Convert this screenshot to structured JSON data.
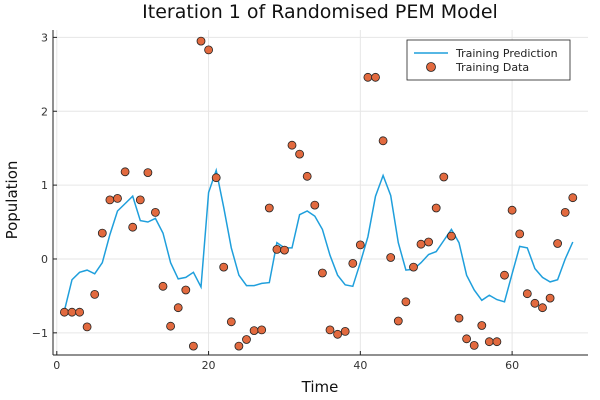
{
  "chart_data": {
    "type": "line",
    "title": "Iteration 1 of Randomised PEM Model",
    "xlabel": "Time",
    "ylabel": "Population",
    "xlim": [
      -0.5,
      70
    ],
    "ylim": [
      -1.3,
      3.1
    ],
    "xticks": [
      0,
      20,
      40,
      60
    ],
    "yticks": [
      -1,
      0,
      1,
      2,
      3
    ],
    "grid": true,
    "legend_position": "top-right",
    "colors": {
      "prediction": "#1f9fdc",
      "data": "#e26a3f",
      "data_edge": "#222222"
    },
    "series": [
      {
        "name": "Training Prediction",
        "kind": "line",
        "x": [
          1,
          2,
          3,
          4,
          5,
          6,
          7,
          8,
          9,
          10,
          11,
          12,
          13,
          14,
          15,
          16,
          17,
          18,
          19,
          20,
          21,
          22,
          23,
          24,
          25,
          26,
          27,
          28,
          29,
          30,
          31,
          32,
          33,
          34,
          35,
          36,
          37,
          38,
          39,
          40,
          41,
          42,
          43,
          44,
          45,
          46,
          47,
          48,
          49,
          50,
          51,
          52,
          53,
          54,
          55,
          56,
          57,
          58,
          59,
          60,
          61,
          62,
          63,
          64,
          65,
          66,
          67,
          68
        ],
        "y": [
          -0.7,
          -0.28,
          -0.18,
          -0.15,
          -0.2,
          -0.05,
          0.33,
          0.65,
          0.75,
          0.85,
          0.52,
          0.5,
          0.55,
          0.35,
          -0.05,
          -0.27,
          -0.25,
          -0.18,
          -0.38,
          0.9,
          1.2,
          0.7,
          0.15,
          -0.22,
          -0.36,
          -0.36,
          -0.33,
          -0.32,
          0.22,
          0.15,
          0.15,
          0.6,
          0.65,
          0.58,
          0.4,
          0.05,
          -0.22,
          -0.35,
          -0.37,
          -0.05,
          0.3,
          0.85,
          1.13,
          0.86,
          0.22,
          -0.15,
          -0.14,
          -0.05,
          0.06,
          0.1,
          0.25,
          0.4,
          0.22,
          -0.22,
          -0.42,
          -0.56,
          -0.49,
          -0.55,
          -0.58,
          -0.2,
          0.17,
          0.15,
          -0.13,
          -0.25,
          -0.31,
          -0.28,
          0.0,
          0.23
        ]
      },
      {
        "name": "Training Data",
        "kind": "scatter",
        "x": [
          1,
          2,
          3,
          4,
          5,
          6,
          7,
          8,
          9,
          10,
          11,
          12,
          13,
          14,
          15,
          16,
          17,
          18,
          19,
          20,
          21,
          22,
          23,
          24,
          25,
          26,
          27,
          28,
          29,
          30,
          31,
          32,
          33,
          34,
          35,
          36,
          37,
          38,
          39,
          40,
          41,
          42,
          43,
          44,
          45,
          46,
          47,
          48,
          49,
          50,
          51,
          52,
          53,
          54,
          55,
          56,
          57,
          58,
          59,
          60,
          61,
          62,
          63,
          64,
          65,
          66,
          67,
          68
        ],
        "y": [
          -0.72,
          -0.72,
          -0.72,
          -0.92,
          -0.48,
          0.35,
          0.8,
          0.82,
          1.18,
          0.43,
          0.8,
          1.17,
          0.63,
          -0.37,
          -0.91,
          -0.66,
          -0.42,
          -1.18,
          2.95,
          2.83,
          1.1,
          -0.11,
          -0.85,
          -1.18,
          -1.09,
          -0.97,
          -0.96,
          0.69,
          0.13,
          0.12,
          1.54,
          1.42,
          1.12,
          0.73,
          -0.19,
          -0.96,
          -1.02,
          -0.98,
          -0.06,
          0.19,
          2.46,
          2.46,
          1.6,
          0.02,
          -0.84,
          -0.58,
          -0.11,
          0.2,
          0.23,
          0.69,
          1.11,
          0.31,
          -0.8,
          -1.08,
          -1.17,
          -0.9,
          -1.12,
          -1.12,
          -0.22,
          0.66,
          0.34,
          -0.47,
          -0.6,
          -0.66,
          -0.53,
          0.21,
          0.63,
          0.83
        ]
      }
    ]
  }
}
